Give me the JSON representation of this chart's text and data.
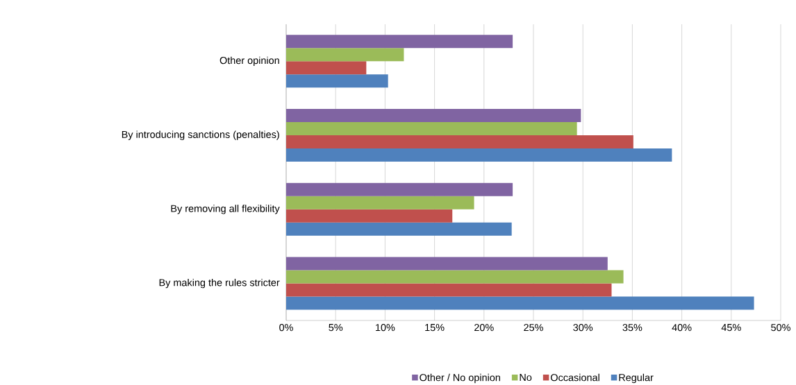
{
  "chart_data": {
    "type": "bar",
    "orientation": "horizontal",
    "categories": [
      "Other opinion",
      "By introducing sanctions (penalties)",
      "By removing all flexibility",
      "By making the rules stricter"
    ],
    "series": [
      {
        "name": "Other / No opinion",
        "color": "#8064a2",
        "values": [
          22.9,
          29.8,
          22.9,
          32.5
        ]
      },
      {
        "name": "No",
        "color": "#9bbb59",
        "values": [
          11.9,
          29.4,
          19.0,
          34.1
        ]
      },
      {
        "name": "Occasional",
        "color": "#c0504d",
        "values": [
          8.1,
          35.1,
          16.8,
          32.9
        ]
      },
      {
        "name": "Regular",
        "color": "#4f81bd",
        "values": [
          10.3,
          39.0,
          22.8,
          47.3
        ]
      }
    ],
    "xlim": [
      0,
      50
    ],
    "xticks": [
      {
        "value": 0,
        "label": "0%"
      },
      {
        "value": 5,
        "label": "5%"
      },
      {
        "value": 10,
        "label": "10%"
      },
      {
        "value": 15,
        "label": "15%"
      },
      {
        "value": 20,
        "label": "20%"
      },
      {
        "value": 25,
        "label": "25%"
      },
      {
        "value": 30,
        "label": "30%"
      },
      {
        "value": 35,
        "label": "35%"
      },
      {
        "value": 40,
        "label": "40%"
      },
      {
        "value": 45,
        "label": "45%"
      },
      {
        "value": 50,
        "label": "50%"
      }
    ],
    "grid": "x",
    "legend": "bottom"
  }
}
